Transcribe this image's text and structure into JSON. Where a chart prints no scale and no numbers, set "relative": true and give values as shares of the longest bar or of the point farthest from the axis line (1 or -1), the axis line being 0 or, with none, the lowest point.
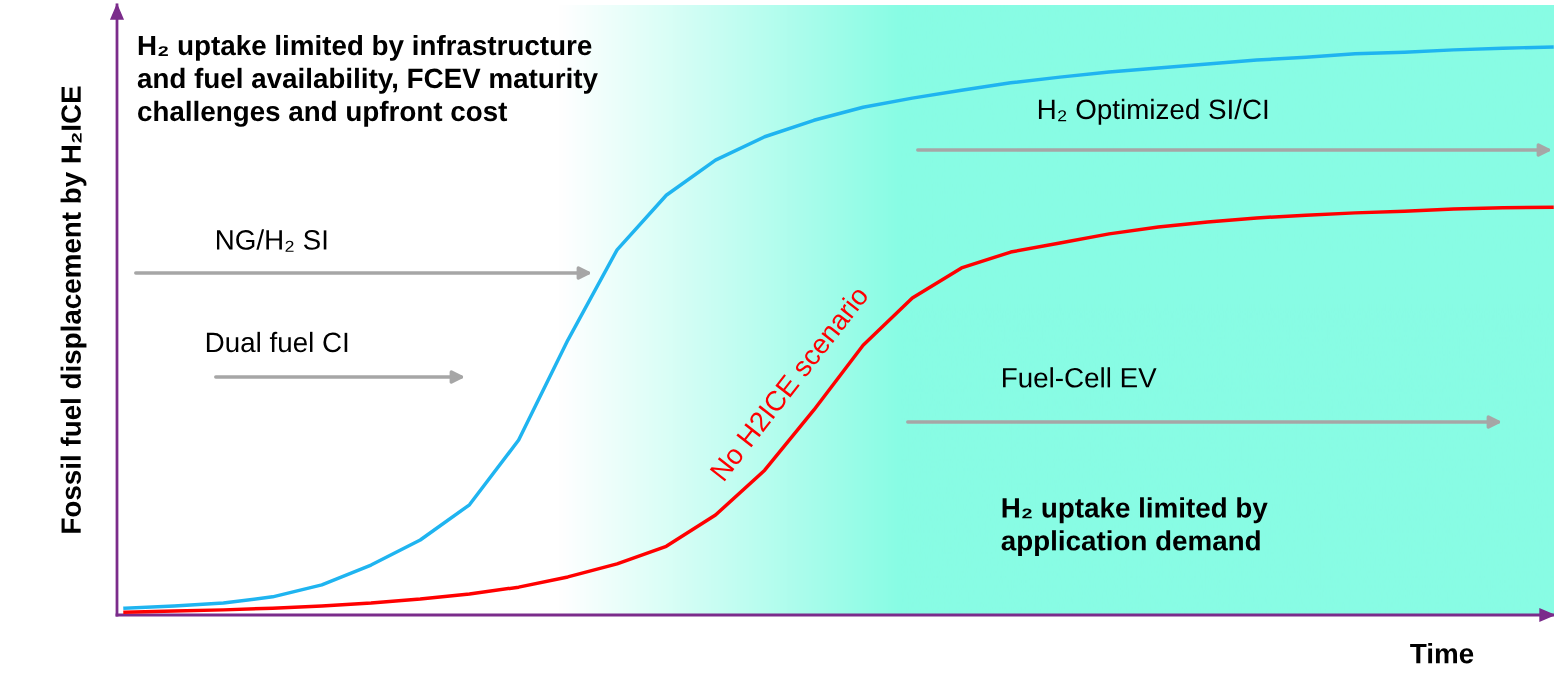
{
  "chart_data": {
    "type": "line",
    "relative": true,
    "tick_labels": false,
    "legend": false,
    "xlabel": "Time",
    "ylabel": "Fossil fuel displacement by H₂ICE",
    "categories": [
      null,
      null,
      null,
      null,
      null,
      null,
      null,
      null,
      null,
      null,
      null,
      null,
      null,
      null,
      null,
      null,
      null,
      null,
      null,
      null,
      null,
      null,
      null,
      null,
      null,
      null,
      null,
      null,
      null,
      null
    ],
    "series": [
      {
        "color": "#1fb4f0",
        "values": [
          0.012,
          0.016,
          0.021,
          0.032,
          0.053,
          0.088,
          0.132,
          0.194,
          0.308,
          0.484,
          0.643,
          0.739,
          0.801,
          0.842,
          0.871,
          0.894,
          0.91,
          0.924,
          0.937,
          0.947,
          0.956,
          0.963,
          0.97,
          0.977,
          0.982,
          0.988,
          0.991,
          0.995,
          0.998,
          1.0
        ]
      },
      {
        "color": "#ff0000",
        "values": [
          0.005,
          0.007,
          0.009,
          0.012,
          0.016,
          0.021,
          0.028,
          0.037,
          0.049,
          0.067,
          0.09,
          0.121,
          0.176,
          0.255,
          0.361,
          0.475,
          0.558,
          0.611,
          0.639,
          0.655,
          0.671,
          0.683,
          0.692,
          0.699,
          0.704,
          0.708,
          0.711,
          0.715,
          0.717,
          0.718
        ]
      }
    ],
    "annotations": [
      "H₂ uptake limited by infrastructure\nand fuel availability, FCEV maturity\nchallenges and upfront cost",
      "NG/H₂ SI",
      "Dual fuel CI",
      "H₂ Optimized SI/CI",
      "Fuel-Cell EV",
      "H₂ uptake limited by\napplication demand",
      "No H2ICE scenario"
    ]
  }
}
